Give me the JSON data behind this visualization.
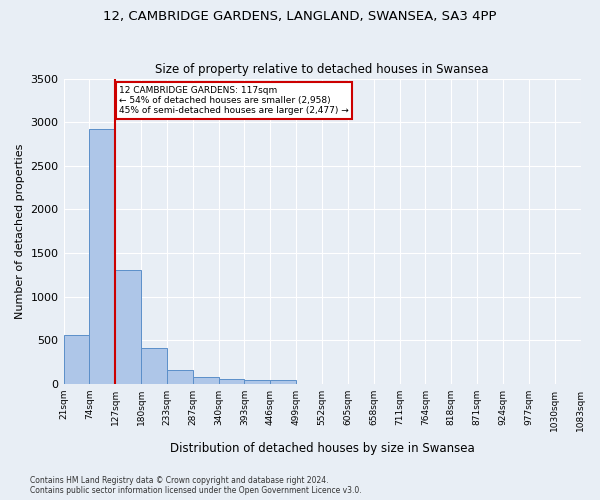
{
  "title1": "12, CAMBRIDGE GARDENS, LANGLAND, SWANSEA, SA3 4PP",
  "title2": "Size of property relative to detached houses in Swansea",
  "xlabel": "Distribution of detached houses by size in Swansea",
  "ylabel": "Number of detached properties",
  "footnote": "Contains HM Land Registry data © Crown copyright and database right 2024.\nContains public sector information licensed under the Open Government Licence v3.0.",
  "bin_edges": [
    "21sqm",
    "74sqm",
    "127sqm",
    "180sqm",
    "233sqm",
    "287sqm",
    "340sqm",
    "393sqm",
    "446sqm",
    "499sqm",
    "552sqm",
    "605sqm",
    "658sqm",
    "711sqm",
    "764sqm",
    "818sqm",
    "871sqm",
    "924sqm",
    "977sqm",
    "1030sqm",
    "1083sqm"
  ],
  "bar_heights": [
    560,
    2920,
    1310,
    410,
    155,
    80,
    55,
    45,
    40,
    0,
    0,
    0,
    0,
    0,
    0,
    0,
    0,
    0,
    0,
    0
  ],
  "bar_color": "#aec6e8",
  "bar_edge_color": "#5b8fc9",
  "vline_x": 2.0,
  "annotation_text": "12 CAMBRIDGE GARDENS: 117sqm\n← 54% of detached houses are smaller (2,958)\n45% of semi-detached houses are larger (2,477) →",
  "vline_color": "#cc0000",
  "annotation_box_color": "#cc0000",
  "ylim": [
    0,
    3500
  ],
  "background_color": "#e8eef5",
  "grid_color": "#ffffff"
}
